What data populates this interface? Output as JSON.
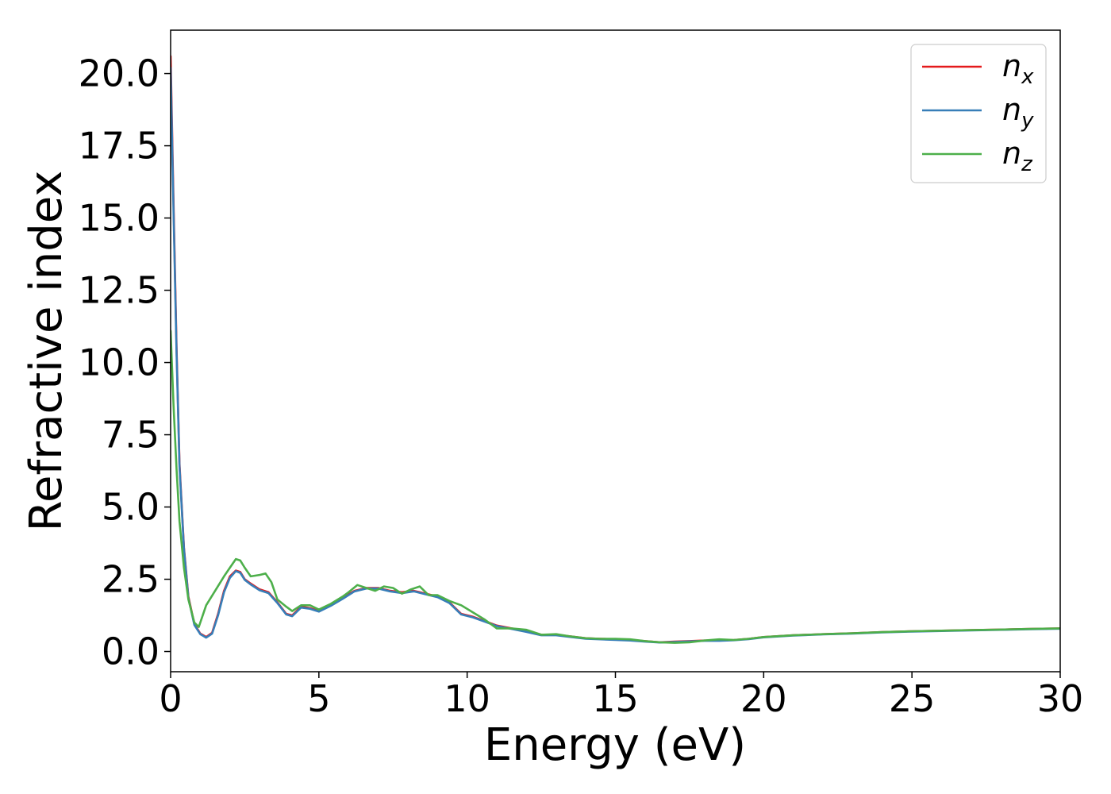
{
  "chart_data": {
    "type": "line",
    "title": "",
    "xlabel": "Energy (eV)",
    "ylabel": "Refractive index",
    "xlim": [
      0,
      30
    ],
    "ylim": [
      -0.7,
      21.5
    ],
    "xticks": [
      0,
      5,
      10,
      15,
      20,
      25,
      30
    ],
    "xtick_labels": [
      "0",
      "5",
      "10",
      "15",
      "20",
      "25",
      "30"
    ],
    "yticks": [
      0,
      2.5,
      5,
      7.5,
      10,
      12.5,
      15,
      17.5,
      20
    ],
    "ytick_labels": [
      "0.0",
      "2.5",
      "5.0",
      "7.5",
      "10.0",
      "12.5",
      "15.0",
      "17.5",
      "20.0"
    ],
    "grid": false,
    "legend_position": "top-right",
    "series": [
      {
        "name": "n",
        "subscript": "x",
        "color": "#e41a1c",
        "x": [
          0,
          0.1,
          0.2,
          0.3,
          0.45,
          0.6,
          0.8,
          1.0,
          1.2,
          1.4,
          1.6,
          1.8,
          2.0,
          2.2,
          2.35,
          2.5,
          2.7,
          3.0,
          3.3,
          3.6,
          3.9,
          4.1,
          4.4,
          4.7,
          5.0,
          5.4,
          5.8,
          6.2,
          6.6,
          7.0,
          7.4,
          7.8,
          8.2,
          8.6,
          9.0,
          9.4,
          9.8,
          10.2,
          10.6,
          11.0,
          11.5,
          12.0,
          12.5,
          13.0,
          13.5,
          14.0,
          14.5,
          15.0,
          15.5,
          16.0,
          16.5,
          17.0,
          17.5,
          18.0,
          18.5,
          19.0,
          19.5,
          20.0,
          21.0,
          22.0,
          23.0,
          24.0,
          25.0,
          26.0,
          27.0,
          28.0,
          29.0,
          30.0
        ],
        "y": [
          20.6,
          15.5,
          10.5,
          6.5,
          3.6,
          1.9,
          0.95,
          0.62,
          0.5,
          0.65,
          1.3,
          2.1,
          2.6,
          2.8,
          2.75,
          2.5,
          2.35,
          2.15,
          2.05,
          1.7,
          1.3,
          1.25,
          1.55,
          1.5,
          1.4,
          1.6,
          1.85,
          2.1,
          2.2,
          2.2,
          2.1,
          2.05,
          2.1,
          2.0,
          1.9,
          1.7,
          1.3,
          1.2,
          1.05,
          0.9,
          0.8,
          0.7,
          0.58,
          0.58,
          0.52,
          0.46,
          0.44,
          0.42,
          0.4,
          0.36,
          0.32,
          0.34,
          0.36,
          0.38,
          0.38,
          0.4,
          0.44,
          0.5,
          0.56,
          0.6,
          0.63,
          0.67,
          0.7,
          0.72,
          0.74,
          0.76,
          0.78,
          0.8
        ]
      },
      {
        "name": "n",
        "subscript": "y",
        "color": "#377eb8",
        "x": [
          0,
          0.1,
          0.2,
          0.3,
          0.45,
          0.6,
          0.8,
          1.0,
          1.2,
          1.4,
          1.6,
          1.8,
          2.0,
          2.2,
          2.35,
          2.5,
          2.7,
          3.0,
          3.3,
          3.6,
          3.9,
          4.1,
          4.4,
          4.7,
          5.0,
          5.4,
          5.8,
          6.2,
          6.6,
          7.0,
          7.4,
          7.8,
          8.2,
          8.6,
          9.0,
          9.4,
          9.8,
          10.2,
          10.6,
          11.0,
          11.5,
          12.0,
          12.5,
          13.0,
          13.5,
          14.0,
          14.5,
          15.0,
          15.5,
          16.0,
          16.5,
          17.0,
          17.5,
          18.0,
          18.5,
          19.0,
          19.5,
          20.0,
          21.0,
          22.0,
          23.0,
          24.0,
          25.0,
          26.0,
          27.0,
          28.0,
          29.0,
          30.0
        ],
        "y": [
          20.2,
          15.2,
          10.3,
          6.4,
          3.55,
          1.85,
          0.92,
          0.6,
          0.48,
          0.62,
          1.25,
          2.05,
          2.55,
          2.78,
          2.72,
          2.48,
          2.32,
          2.12,
          2.02,
          1.68,
          1.28,
          1.22,
          1.52,
          1.48,
          1.38,
          1.58,
          1.82,
          2.08,
          2.18,
          2.18,
          2.08,
          2.02,
          2.08,
          1.98,
          1.88,
          1.68,
          1.28,
          1.18,
          1.03,
          0.88,
          0.78,
          0.68,
          0.56,
          0.56,
          0.5,
          0.44,
          0.42,
          0.4,
          0.38,
          0.34,
          0.31,
          0.33,
          0.35,
          0.37,
          0.37,
          0.39,
          0.43,
          0.49,
          0.55,
          0.59,
          0.62,
          0.66,
          0.69,
          0.71,
          0.73,
          0.75,
          0.77,
          0.79
        ]
      },
      {
        "name": "n",
        "subscript": "z",
        "color": "#4daf4a",
        "x": [
          0,
          0.1,
          0.2,
          0.3,
          0.45,
          0.6,
          0.8,
          0.95,
          1.2,
          1.5,
          1.8,
          2.0,
          2.2,
          2.35,
          2.5,
          2.7,
          3.0,
          3.2,
          3.4,
          3.6,
          3.9,
          4.1,
          4.4,
          4.7,
          5.0,
          5.4,
          5.8,
          6.0,
          6.3,
          6.6,
          6.9,
          7.2,
          7.5,
          7.8,
          8.1,
          8.4,
          8.7,
          9.0,
          9.4,
          9.8,
          10.2,
          10.6,
          11.0,
          11.5,
          12.0,
          12.5,
          13.0,
          13.5,
          14.0,
          14.5,
          15.0,
          15.5,
          16.0,
          16.5,
          17.0,
          17.5,
          18.0,
          18.5,
          19.0,
          19.5,
          20.0,
          21.0,
          22.0,
          23.0,
          24.0,
          25.0,
          26.0,
          27.0,
          28.0,
          29.0,
          30.0
        ],
        "y": [
          11.1,
          8.5,
          6.3,
          4.5,
          2.9,
          1.8,
          1.0,
          0.85,
          1.6,
          2.1,
          2.6,
          2.9,
          3.2,
          3.15,
          2.9,
          2.6,
          2.65,
          2.7,
          2.4,
          1.8,
          1.55,
          1.4,
          1.6,
          1.6,
          1.45,
          1.65,
          1.9,
          2.05,
          2.3,
          2.2,
          2.1,
          2.25,
          2.2,
          2.0,
          2.15,
          2.25,
          1.95,
          1.95,
          1.75,
          1.6,
          1.35,
          1.1,
          0.8,
          0.8,
          0.75,
          0.58,
          0.6,
          0.52,
          0.46,
          0.44,
          0.44,
          0.42,
          0.36,
          0.32,
          0.3,
          0.32,
          0.38,
          0.42,
          0.4,
          0.44,
          0.5,
          0.56,
          0.6,
          0.63,
          0.67,
          0.7,
          0.72,
          0.74,
          0.76,
          0.78,
          0.8
        ]
      }
    ]
  }
}
